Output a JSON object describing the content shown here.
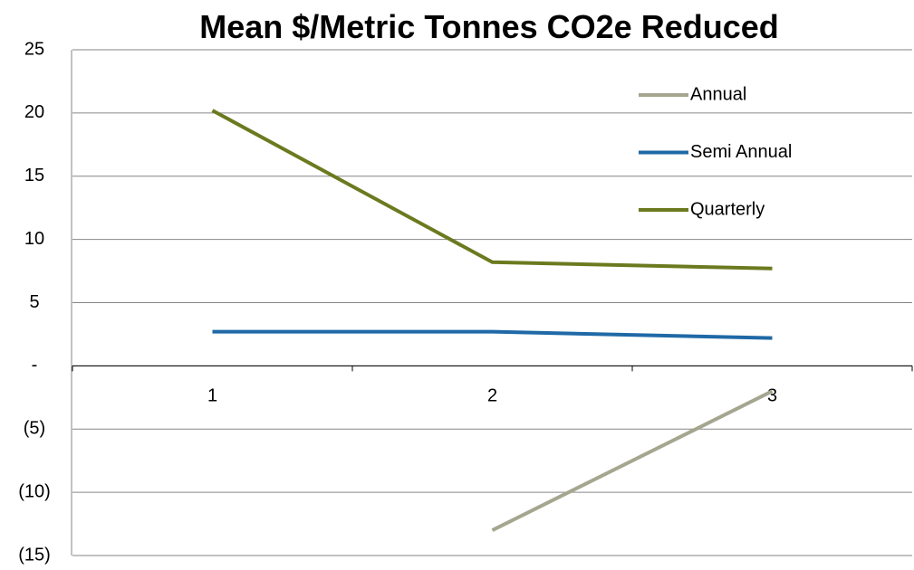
{
  "chart_data": {
    "type": "line",
    "title": "Mean $/Metric Tonnes CO2e Reduced",
    "categories": [
      "1",
      "2",
      "3"
    ],
    "series": [
      {
        "name": "Annual",
        "color": "#a5a68f",
        "values": [
          null,
          -13.0,
          -2.0
        ]
      },
      {
        "name": "Semi Annual",
        "color": "#1f69a6",
        "values": [
          2.7,
          2.7,
          2.2
        ]
      },
      {
        "name": "Quarterly",
        "color": "#6b7a1f",
        "values": [
          20.2,
          8.2,
          7.7
        ]
      }
    ],
    "ylim": [
      -15,
      25
    ],
    "yticks": [
      {
        "value": -15,
        "label": "(15)"
      },
      {
        "value": -10,
        "label": "(10)"
      },
      {
        "value": -5,
        "label": "(5)"
      },
      {
        "value": 0,
        "label": "-"
      },
      5,
      10,
      15,
      20,
      25
    ],
    "grid": true,
    "legend": "top-right"
  }
}
